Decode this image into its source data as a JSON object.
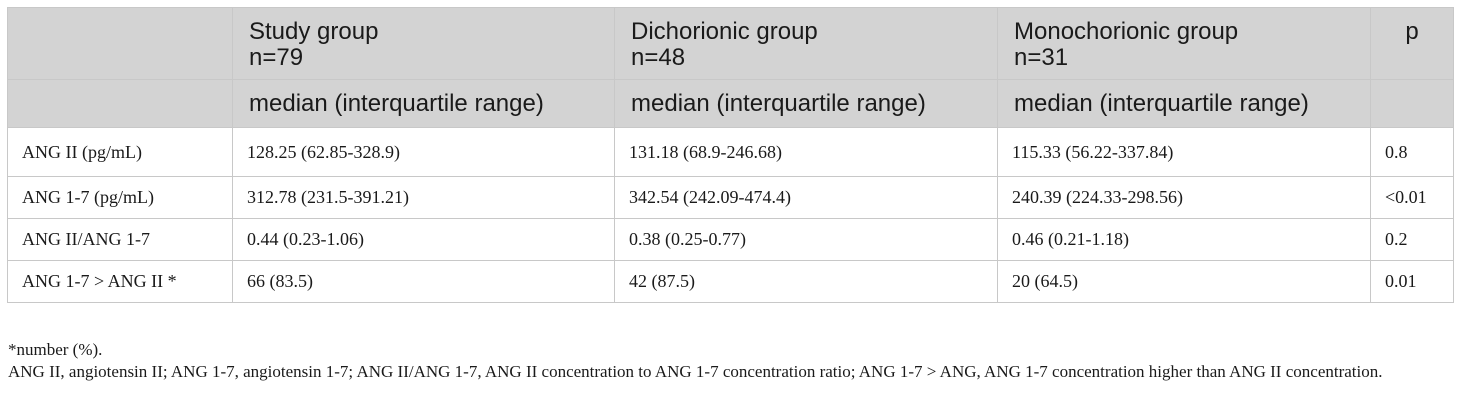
{
  "table": {
    "header_groups": [
      {
        "name": "",
        "n": "",
        "stat": ""
      },
      {
        "name": "Study group",
        "n": "n=79",
        "stat": "median (interquartile range)"
      },
      {
        "name": "Dichorionic group",
        "n": "n=48",
        "stat": "median (interquartile range)"
      },
      {
        "name": "Monochorionic group",
        "n": "n=31",
        "stat": "median (interquartile range)"
      },
      {
        "name": "p",
        "n": "",
        "stat": ""
      }
    ],
    "rows": [
      [
        "ANG II (pg/mL)",
        "128.25 (62.85-328.9)",
        "131.18 (68.9-246.68)",
        "115.33 (56.22-337.84)",
        "0.8"
      ],
      [
        "ANG 1-7 (pg/mL)",
        "312.78 (231.5-391.21)",
        "342.54 (242.09-474.4)",
        "240.39 (224.33-298.56)",
        "<0.01"
      ],
      [
        "ANG II/ANG 1-7",
        "0.44 (0.23-1.06)",
        "0.38 (0.25-0.77)",
        "0.46 (0.21-1.18)",
        "0.2"
      ],
      [
        "ANG 1-7 > ANG II *",
        "66 (83.5)",
        "42 (87.5)",
        "20 (64.5)",
        "0.01"
      ]
    ]
  },
  "footnotes": {
    "asterisk": "*number (%).",
    "abbreviations": "ANG II, angiotensin II; ANG 1-7, angiotensin 1-7; ANG II/ANG 1-7, ANG II concentration to ANG 1-7 concentration ratio; ANG 1-7 > ANG, ANG 1-7 concentration higher than ANG II concentration."
  }
}
